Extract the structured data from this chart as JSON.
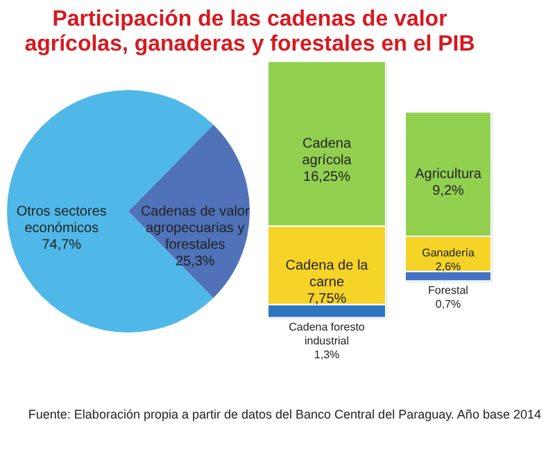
{
  "chart_data": [
    {
      "type": "pie",
      "title": "Participación de las cadenas de valor agrícolas, ganaderas y forestales en el PIB",
      "categories": [
        "Otros sectores económicos",
        "Cadenas de valor agropecuarias y forestales"
      ],
      "values": [
        74.7,
        25.3
      ],
      "colors": [
        "#4fb8e8",
        "#4f72b8"
      ],
      "value_labels": [
        "74,7%",
        "25,3%"
      ],
      "legend": false
    },
    {
      "type": "bar",
      "stacked": true,
      "categories": [
        null
      ],
      "ylim": [
        0,
        25.3
      ],
      "tick_labels": false,
      "legend": false,
      "series": [
        {
          "name": "Cadena foresto industrial",
          "color": "#2e75c0",
          "values": [
            1.3
          ],
          "value_labels": [
            "1,3%"
          ]
        },
        {
          "name": "Cadena de la carne",
          "color": "#f5d327",
          "values": [
            7.75
          ],
          "value_labels": [
            "7,75%"
          ]
        },
        {
          "name": "Cadena agrícola",
          "color": "#92d050",
          "values": [
            16.25
          ],
          "value_labels": [
            "16,25%"
          ]
        }
      ]
    },
    {
      "type": "bar",
      "stacked": true,
      "categories": [
        null
      ],
      "ylim": [
        0,
        12.5
      ],
      "tick_labels": false,
      "legend": false,
      "annotations": [
        "Fuente: Elaboración propia a partir de datos del Banco Central del Paraguay. Año base 2014"
      ],
      "series": [
        {
          "name": "Forestal",
          "color": "#4472c4",
          "values": [
            0.7
          ],
          "value_labels": [
            "0,7%"
          ]
        },
        {
          "name": "Ganadería",
          "color": "#f5d327",
          "values": [
            2.6
          ],
          "value_labels": [
            "2,6%"
          ]
        },
        {
          "name": "Agricultura",
          "color": "#92d050",
          "values": [
            9.2
          ],
          "value_labels": [
            "9,2%"
          ]
        }
      ]
    }
  ]
}
